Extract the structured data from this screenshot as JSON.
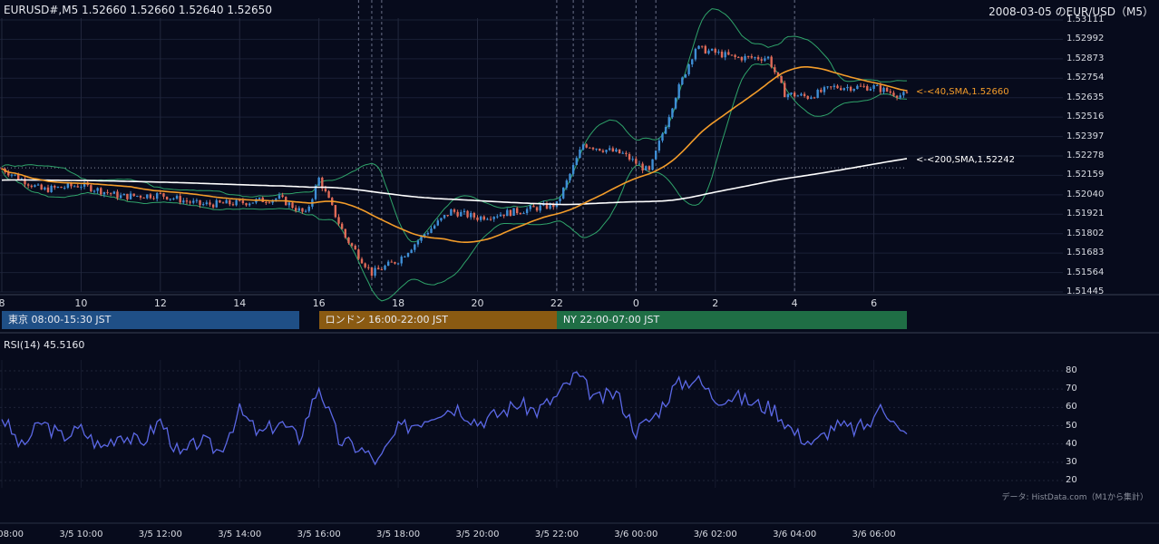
{
  "header": {
    "ohlc": "EURUSD#,M5 1.52660 1.52660 1.52640 1.52650",
    "title_right": "2008-03-05 のEUR/USD（M5）"
  },
  "colors": {
    "background": "#070b1c",
    "bull_candle": "#3f8fd6",
    "bear_candle": "#e06b58",
    "sma40": "#f39c2a",
    "sma200": "#ffffff",
    "bollinger": "#2fa36a",
    "rsi": "#5b68e6",
    "tokyo": "#1f4f86",
    "london": "#8a5a12",
    "newyork": "#1f6e45"
  },
  "sessions": [
    {
      "label": "東京 08:00-15:30 JST"
    },
    {
      "label": "ロンドン 16:00-22:00 JST"
    },
    {
      "label": "NY 22:00-07:00 JST"
    }
  ],
  "chart_data": [
    {
      "type": "candlestick",
      "symbol": "EURUSD#",
      "timeframe": "M5",
      "ylim": [
        1.51445,
        1.53111
      ],
      "yticks": [
        "1.53111",
        "1.52992",
        "1.52873",
        "1.52754",
        "1.52635",
        "1.52516",
        "1.52397",
        "1.52278",
        "1.52159",
        "1.52040",
        "1.51921",
        "1.51802",
        "1.51683",
        "1.51564",
        "1.51445"
      ],
      "xticks": [
        "8",
        "10",
        "12",
        "14",
        "16",
        "18",
        "20",
        "22",
        "0",
        "2",
        "4",
        "6"
      ],
      "indicators": [
        {
          "name": "SMA 40",
          "label": "<-<40,SMA,1.52660",
          "last": 1.5266
        },
        {
          "name": "SMA 200",
          "label": "<-<200,SMA,1.52242",
          "last": 1.52242
        },
        {
          "name": "Bollinger Bands"
        }
      ],
      "price_path_keypoints": [
        {
          "t": "08:00",
          "price": 1.522
        },
        {
          "t": "09:00",
          "price": 1.5207
        },
        {
          "t": "10:00",
          "price": 1.521
        },
        {
          "t": "11:00",
          "price": 1.5203
        },
        {
          "t": "12:00",
          "price": 1.5204
        },
        {
          "t": "13:00",
          "price": 1.5198
        },
        {
          "t": "14:00",
          "price": 1.5199
        },
        {
          "t": "15:00",
          "price": 1.5202
        },
        {
          "t": "15:40",
          "price": 1.5192
        },
        {
          "t": "16:00",
          "price": 1.5214
        },
        {
          "t": "16:40",
          "price": 1.5178
        },
        {
          "t": "17:20",
          "price": 1.5156
        },
        {
          "t": "18:00",
          "price": 1.5164
        },
        {
          "t": "18:40",
          "price": 1.518
        },
        {
          "t": "19:20",
          "price": 1.5194
        },
        {
          "t": "20:00",
          "price": 1.519
        },
        {
          "t": "21:00",
          "price": 1.5194
        },
        {
          "t": "22:00",
          "price": 1.5198
        },
        {
          "t": "22:40",
          "price": 1.5235
        },
        {
          "t": "23:40",
          "price": 1.5229
        },
        {
          "t": "00:20",
          "price": 1.5218
        },
        {
          "t": "01:00",
          "price": 1.5265
        },
        {
          "t": "01:30",
          "price": 1.5294
        },
        {
          "t": "02:30",
          "price": 1.5288
        },
        {
          "t": "03:20",
          "price": 1.5288
        },
        {
          "t": "03:45",
          "price": 1.5266
        },
        {
          "t": "04:20",
          "price": 1.5264
        },
        {
          "t": "05:00",
          "price": 1.527
        },
        {
          "t": "06:00",
          "price": 1.527
        },
        {
          "t": "06:40",
          "price": 1.5265
        }
      ]
    },
    {
      "type": "line",
      "title": "RSI(14) 45.5160",
      "ylim": [
        20,
        80
      ],
      "yticks": [
        "80",
        "70",
        "60",
        "50",
        "40",
        "30",
        "20"
      ],
      "xticks": [
        "3/5 08:00",
        "3/5 10:00",
        "3/5 12:00",
        "3/5 14:00",
        "3/5 16:00",
        "3/5 18:00",
        "3/5 20:00",
        "3/5 22:00",
        "3/6 00:00",
        "3/6 02:00",
        "3/6 04:00",
        "3/6 06:00"
      ],
      "series": [
        {
          "name": "RSI(14)",
          "keypoints": [
            {
              "t": "08:00",
              "value": 55
            },
            {
              "t": "08:30",
              "value": 38
            },
            {
              "t": "09:00",
              "value": 52
            },
            {
              "t": "09:30",
              "value": 44
            },
            {
              "t": "10:00",
              "value": 48
            },
            {
              "t": "10:30",
              "value": 38
            },
            {
              "t": "11:00",
              "value": 46
            },
            {
              "t": "11:30",
              "value": 40
            },
            {
              "t": "12:00",
              "value": 53
            },
            {
              "t": "12:30",
              "value": 33
            },
            {
              "t": "13:00",
              "value": 42
            },
            {
              "t": "13:30",
              "value": 36
            },
            {
              "t": "14:00",
              "value": 58
            },
            {
              "t": "14:30",
              "value": 45
            },
            {
              "t": "15:00",
              "value": 52
            },
            {
              "t": "15:30",
              "value": 43
            },
            {
              "t": "16:00",
              "value": 72
            },
            {
              "t": "16:30",
              "value": 42
            },
            {
              "t": "17:00",
              "value": 38
            },
            {
              "t": "17:30",
              "value": 30
            },
            {
              "t": "18:00",
              "value": 48
            },
            {
              "t": "18:30",
              "value": 52
            },
            {
              "t": "19:00",
              "value": 58
            },
            {
              "t": "19:30",
              "value": 60
            },
            {
              "t": "20:00",
              "value": 52
            },
            {
              "t": "20:30",
              "value": 56
            },
            {
              "t": "21:00",
              "value": 62
            },
            {
              "t": "21:30",
              "value": 58
            },
            {
              "t": "22:00",
              "value": 66
            },
            {
              "t": "22:30",
              "value": 78
            },
            {
              "t": "23:00",
              "value": 64
            },
            {
              "t": "23:30",
              "value": 68
            },
            {
              "t": "00:00",
              "value": 47
            },
            {
              "t": "00:30",
              "value": 56
            },
            {
              "t": "01:00",
              "value": 72
            },
            {
              "t": "01:30",
              "value": 76
            },
            {
              "t": "02:00",
              "value": 65
            },
            {
              "t": "02:30",
              "value": 66
            },
            {
              "t": "03:00",
              "value": 62
            },
            {
              "t": "03:30",
              "value": 59
            },
            {
              "t": "04:00",
              "value": 46
            },
            {
              "t": "04:30",
              "value": 40
            },
            {
              "t": "05:00",
              "value": 50
            },
            {
              "t": "05:30",
              "value": 48
            },
            {
              "t": "06:00",
              "value": 52
            },
            {
              "t": "06:10",
              "value": 64
            },
            {
              "t": "06:40",
              "value": 45.5
            }
          ]
        }
      ]
    }
  ],
  "footer": {
    "source": "データ: HistData.com（M1から集計）"
  }
}
